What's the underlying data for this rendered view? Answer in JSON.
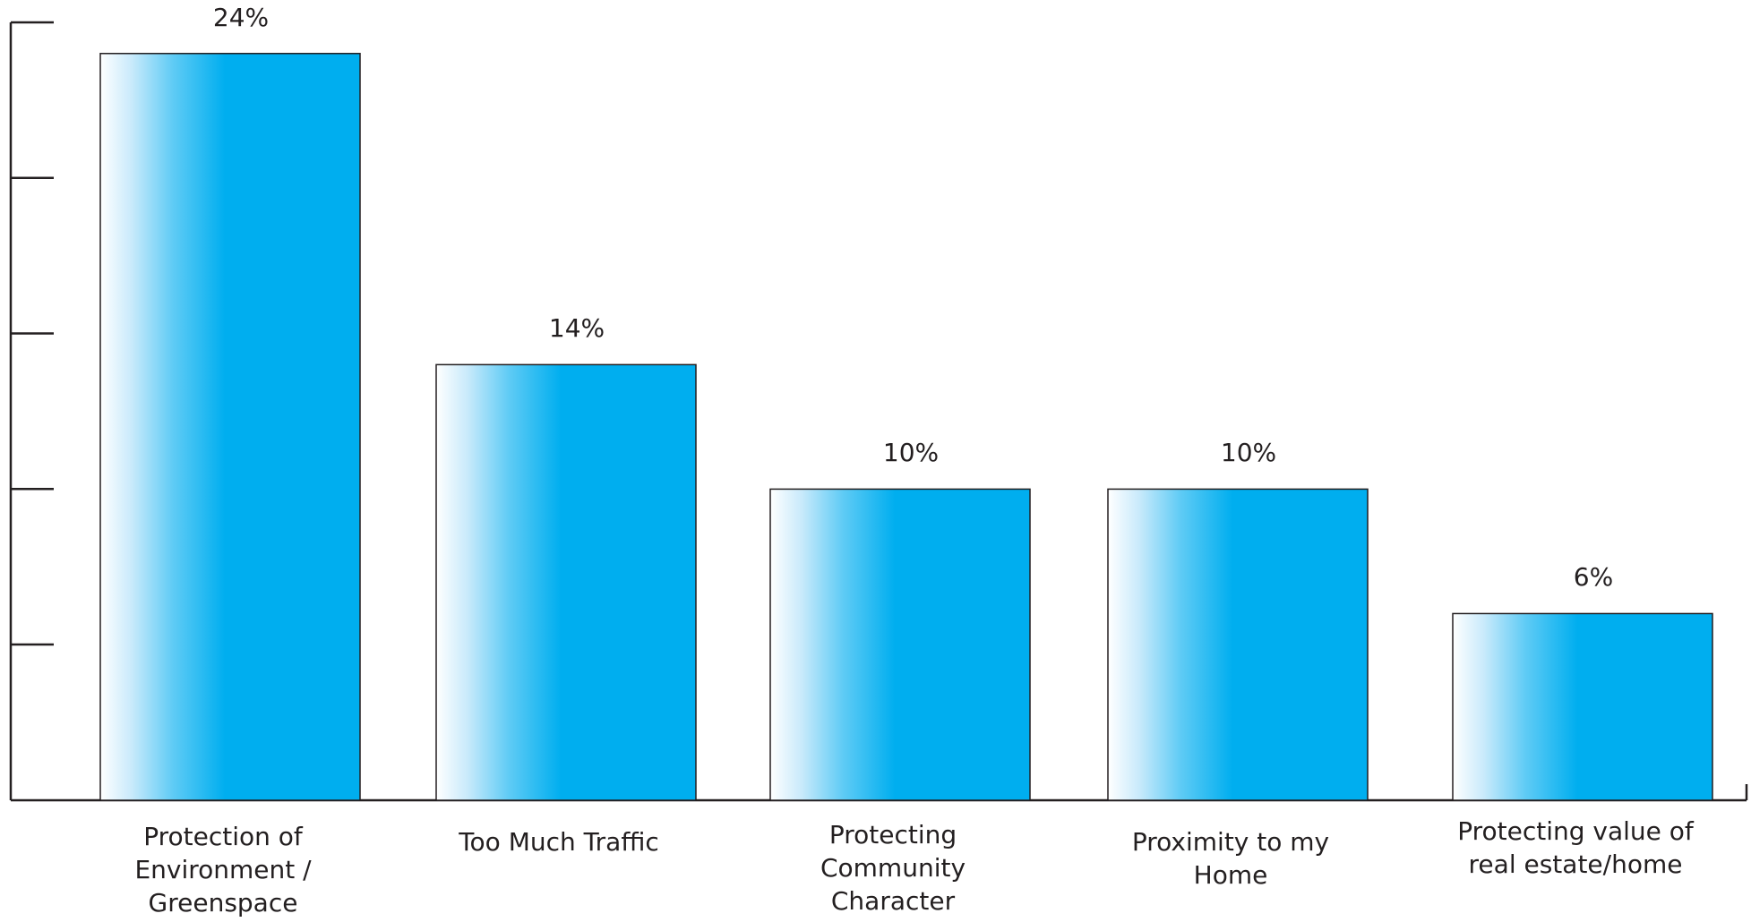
{
  "chart_data": {
    "type": "bar",
    "title": "",
    "xlabel": "",
    "ylabel": "",
    "categories": [
      [
        "Protection of",
        "Environment /",
        "Greenspace"
      ],
      [
        "Too Much Traffic"
      ],
      [
        "Protecting",
        "Community",
        "Character"
      ],
      [
        "Proximity to my",
        "Home"
      ],
      [
        "Protecting value of",
        "real estate/home"
      ]
    ],
    "values": [
      24,
      14,
      10,
      10,
      6
    ],
    "value_labels": [
      "24%",
      "14%",
      "10%",
      "10%",
      "6%"
    ],
    "ylim": [
      0,
      25
    ],
    "y_tick_count": 5,
    "y_tick_labels_shown": false,
    "grid": false,
    "legend": "none",
    "colors": {
      "bar_fill": "#00aeef",
      "bar_fill_light": "#ffffff",
      "bar_stroke": "#231f20",
      "axis": "#231f20"
    }
  }
}
